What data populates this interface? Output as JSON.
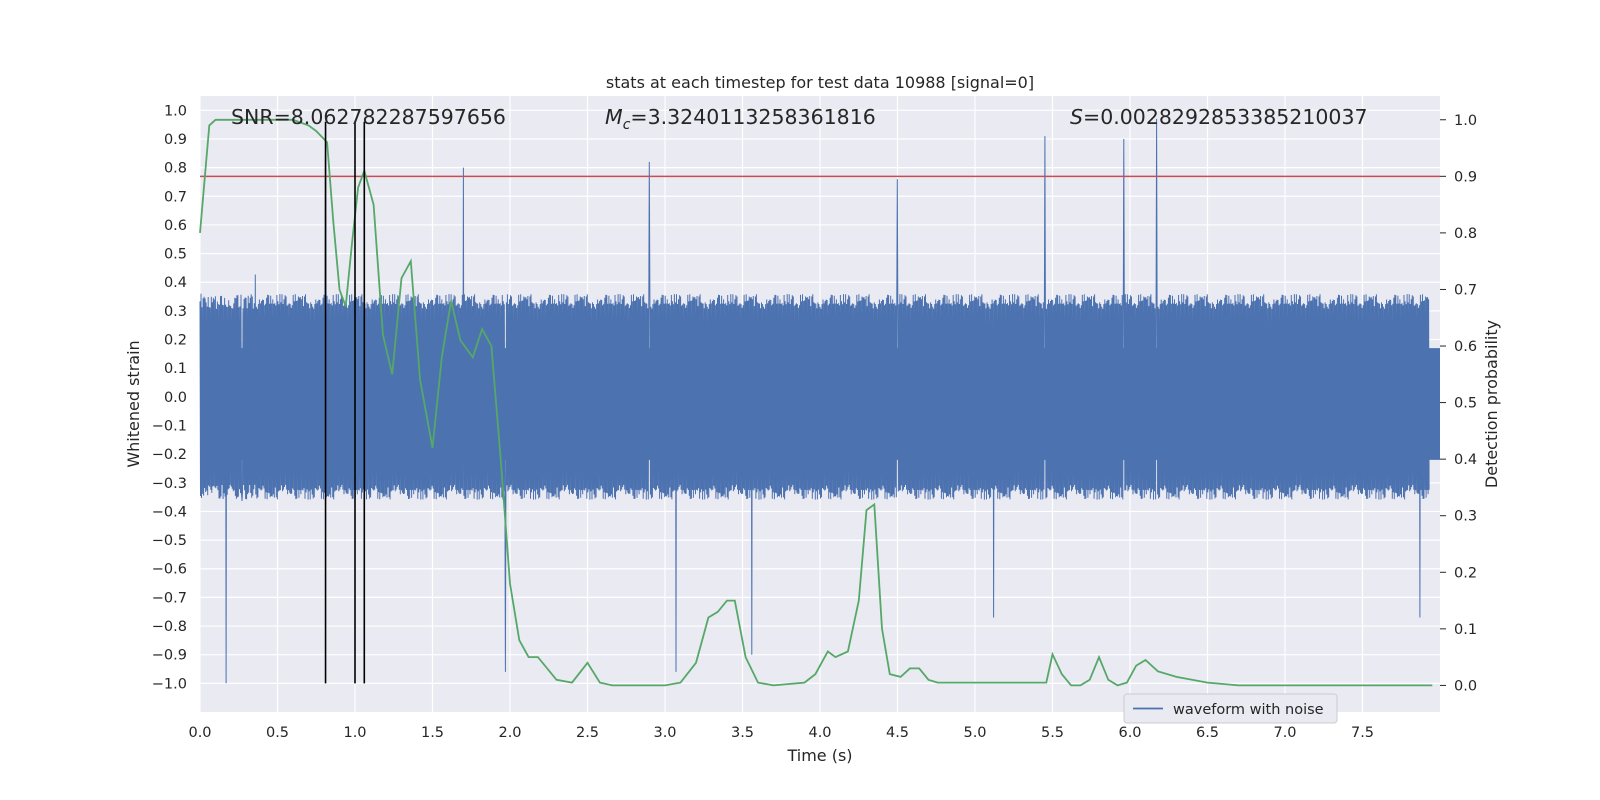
{
  "chart_data": {
    "type": "line",
    "title": "stats at each timestep for test data 10988 [signal=0]",
    "xlabel": "Time (s)",
    "ylabel_left": "Whitened strain",
    "ylabel_right": "Detection probability",
    "xlim": [
      0.0,
      8.0
    ],
    "ylim_left": [
      -1.1,
      1.05
    ],
    "ylim_right": [
      -0.047,
      1.042
    ],
    "x_ticks": [
      "0.0",
      "0.5",
      "1.0",
      "1.5",
      "2.0",
      "2.5",
      "3.0",
      "3.5",
      "4.0",
      "4.5",
      "5.0",
      "5.5",
      "6.0",
      "6.5",
      "7.0",
      "7.5"
    ],
    "x_tick_values": [
      0.0,
      0.5,
      1.0,
      1.5,
      2.0,
      2.5,
      3.0,
      3.5,
      4.0,
      4.5,
      5.0,
      5.5,
      6.0,
      6.5,
      7.0,
      7.5
    ],
    "y_left_ticks": [
      "1.0",
      "0.9",
      "0.8",
      "0.7",
      "0.6",
      "0.5",
      "0.4",
      "0.3",
      "0.2",
      "0.1",
      "0.0",
      "−0.1",
      "−0.2",
      "−0.3",
      "−0.4",
      "−0.5",
      "−0.6",
      "−0.7",
      "−0.8",
      "−0.9",
      "−1.0"
    ],
    "y_left_tick_values": [
      1.0,
      0.9,
      0.8,
      0.7,
      0.6,
      0.5,
      0.4,
      0.3,
      0.2,
      0.1,
      0.0,
      -0.1,
      -0.2,
      -0.3,
      -0.4,
      -0.5,
      -0.6,
      -0.7,
      -0.8,
      -0.9,
      -1.0
    ],
    "y_right_ticks": [
      "1.0",
      "0.9",
      "0.8",
      "0.7",
      "0.6",
      "0.5",
      "0.4",
      "0.3",
      "0.2",
      "0.1",
      "0.0"
    ],
    "y_right_tick_values": [
      1.0,
      0.9,
      0.8,
      0.7,
      0.6,
      0.5,
      0.4,
      0.3,
      0.2,
      0.1,
      0.0
    ],
    "annotations": {
      "snr": "SNR=8.062782287597656",
      "mc_symbol": "M",
      "mc_subscript": "c",
      "mc_value": "=3.3240113258361816",
      "s_symbol": "S",
      "s_value": "=0.0028292853385210037"
    },
    "legend": {
      "label": "waveform with noise",
      "position": "lower-right"
    },
    "threshold": {
      "value": 0.9,
      "axis": "right",
      "color": "#c44e52"
    },
    "vertical_markers": [
      0.81,
      1.0,
      1.06
    ],
    "waveform": {
      "name": "waveform with noise",
      "color": "#4c72b0",
      "samples": 2400,
      "seed": 10988,
      "core_amplitude": 0.36,
      "peaks": [
        {
          "t": 0.17,
          "v": -1.0
        },
        {
          "t": 0.81,
          "v": 0.95
        },
        {
          "t": 1.97,
          "v": -0.96
        },
        {
          "t": 2.9,
          "v": 0.82
        },
        {
          "t": 3.07,
          "v": -0.96
        },
        {
          "t": 3.56,
          "v": -0.9
        },
        {
          "t": 4.5,
          "v": 0.76
        },
        {
          "t": 5.45,
          "v": 0.91
        },
        {
          "t": 5.96,
          "v": 0.9
        },
        {
          "t": 6.17,
          "v": 0.97
        },
        {
          "t": 1.7,
          "v": 0.8
        },
        {
          "t": 5.12,
          "v": -0.77
        },
        {
          "t": 7.87,
          "v": -0.77
        }
      ]
    },
    "probability": {
      "name": "detection probability",
      "color": "#55a868",
      "x": [
        0.0,
        0.06,
        0.1,
        0.2,
        0.3,
        0.4,
        0.5,
        0.6,
        0.7,
        0.75,
        0.82,
        0.86,
        0.9,
        0.94,
        0.98,
        1.02,
        1.06,
        1.12,
        1.18,
        1.24,
        1.3,
        1.36,
        1.42,
        1.5,
        1.56,
        1.62,
        1.68,
        1.76,
        1.82,
        1.88,
        1.94,
        2.0,
        2.06,
        2.12,
        2.18,
        2.3,
        2.4,
        2.5,
        2.58,
        2.66,
        2.8,
        3.0,
        3.1,
        3.2,
        3.28,
        3.34,
        3.4,
        3.45,
        3.52,
        3.6,
        3.7,
        3.9,
        3.97,
        4.05,
        4.1,
        4.18,
        4.25,
        4.3,
        4.35,
        4.4,
        4.45,
        4.52,
        4.58,
        4.64,
        4.7,
        4.76,
        4.84,
        4.95,
        5.1,
        5.2,
        5.3,
        5.4,
        5.46,
        5.5,
        5.56,
        5.62,
        5.68,
        5.74,
        5.8,
        5.86,
        5.92,
        5.98,
        6.04,
        6.1,
        6.18,
        6.3,
        6.5,
        6.7,
        7.0,
        7.5,
        7.8,
        7.95
      ],
      "y": [
        0.8,
        0.99,
        1.0,
        1.0,
        1.0,
        1.0,
        1.0,
        1.0,
        0.99,
        0.98,
        0.96,
        0.82,
        0.7,
        0.67,
        0.78,
        0.88,
        0.91,
        0.85,
        0.62,
        0.55,
        0.72,
        0.75,
        0.54,
        0.42,
        0.58,
        0.68,
        0.61,
        0.58,
        0.63,
        0.6,
        0.4,
        0.18,
        0.08,
        0.05,
        0.05,
        0.01,
        0.005,
        0.04,
        0.005,
        0.0,
        0.0,
        0.0,
        0.005,
        0.04,
        0.12,
        0.13,
        0.15,
        0.15,
        0.05,
        0.005,
        0.0,
        0.005,
        0.02,
        0.06,
        0.05,
        0.06,
        0.15,
        0.31,
        0.32,
        0.1,
        0.02,
        0.015,
        0.03,
        0.03,
        0.01,
        0.005,
        0.005,
        0.005,
        0.005,
        0.005,
        0.005,
        0.005,
        0.005,
        0.055,
        0.02,
        0.0,
        0.0,
        0.01,
        0.05,
        0.01,
        0.0,
        0.005,
        0.035,
        0.045,
        0.025,
        0.015,
        0.005,
        0.0,
        0.0,
        0.0,
        0.0,
        0.0
      ]
    }
  }
}
